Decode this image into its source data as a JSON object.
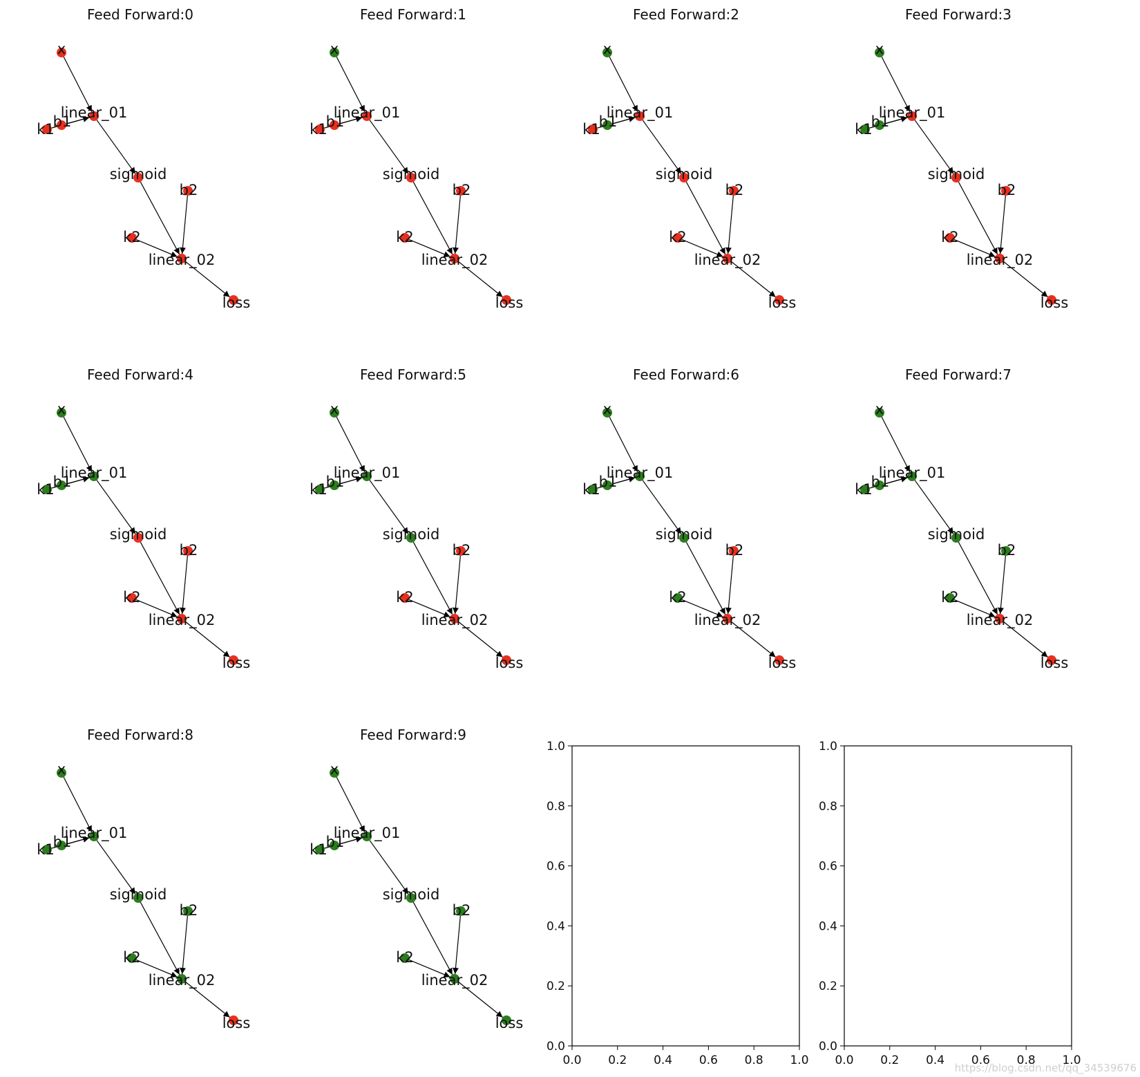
{
  "colors": {
    "done": "#2d7d1f",
    "pending": "#e8301f",
    "edge": "#000000"
  },
  "watermark": "https://blog.csdn.net/qq_34539676",
  "chart_data": {
    "type": "network-grid",
    "title_prefix": "Feed Forward:",
    "nodes": [
      "x",
      "linear_01",
      "k1",
      "b1",
      "sigmoid",
      "b2",
      "k2",
      "linear_02",
      "loss"
    ],
    "edges": [
      [
        "x",
        "linear_01"
      ],
      [
        "k1",
        "linear_01"
      ],
      [
        "b1",
        "linear_01"
      ],
      [
        "linear_01",
        "sigmoid"
      ],
      [
        "sigmoid",
        "linear_02"
      ],
      [
        "b2",
        "linear_02"
      ],
      [
        "k2",
        "linear_02"
      ],
      [
        "linear_02",
        "loss"
      ]
    ],
    "panels": [
      {
        "title": "Feed Forward:0",
        "done": []
      },
      {
        "title": "Feed Forward:1",
        "done": [
          "x"
        ]
      },
      {
        "title": "Feed Forward:2",
        "done": [
          "x",
          "b1"
        ]
      },
      {
        "title": "Feed Forward:3",
        "done": [
          "x",
          "b1",
          "k1"
        ]
      },
      {
        "title": "Feed Forward:4",
        "done": [
          "x",
          "b1",
          "k1",
          "linear_01"
        ]
      },
      {
        "title": "Feed Forward:5",
        "done": [
          "x",
          "b1",
          "k1",
          "linear_01",
          "sigmoid"
        ]
      },
      {
        "title": "Feed Forward:6",
        "done": [
          "x",
          "b1",
          "k1",
          "linear_01",
          "sigmoid",
          "k2"
        ]
      },
      {
        "title": "Feed Forward:7",
        "done": [
          "x",
          "b1",
          "k1",
          "linear_01",
          "sigmoid",
          "k2",
          "b2"
        ]
      },
      {
        "title": "Feed Forward:8",
        "done": [
          "x",
          "b1",
          "k1",
          "linear_01",
          "sigmoid",
          "k2",
          "b2",
          "linear_02"
        ]
      },
      {
        "title": "Feed Forward:9",
        "done": [
          "x",
          "b1",
          "k1",
          "linear_01",
          "sigmoid",
          "k2",
          "b2",
          "linear_02",
          "loss"
        ]
      }
    ],
    "empty_axes": [
      {
        "xlim": [
          0.0,
          1.0
        ],
        "ylim": [
          0.0,
          1.0
        ],
        "xticks": [
          "0.0",
          "0.2",
          "0.4",
          "0.6",
          "0.8",
          "1.0"
        ],
        "yticks": [
          "0.0",
          "0.2",
          "0.4",
          "0.6",
          "0.8",
          "1.0"
        ]
      },
      {
        "xlim": [
          0.0,
          1.0
        ],
        "ylim": [
          0.0,
          1.0
        ],
        "xticks": [
          "0.0",
          "0.2",
          "0.4",
          "0.6",
          "0.8",
          "1.0"
        ],
        "yticks": [
          "0.0",
          "0.2",
          "0.4",
          "0.6",
          "0.8",
          "1.0"
        ]
      }
    ]
  }
}
